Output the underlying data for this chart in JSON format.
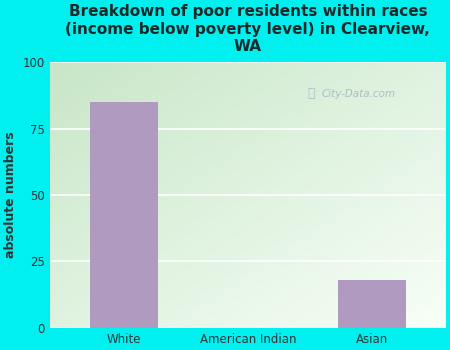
{
  "categories": [
    "White",
    "American Indian",
    "Asian"
  ],
  "values": [
    85,
    0,
    18
  ],
  "bar_color": "#b09abf",
  "title": "Breakdown of poor residents within races\n(income below poverty level) in Clearview,\nWA",
  "ylabel": "absolute numbers",
  "ylim": [
    0,
    100
  ],
  "yticks": [
    0,
    25,
    50,
    75,
    100
  ],
  "outer_bg_color": "#00efef",
  "plot_bg_color_topleft": "#c8e6c0",
  "plot_bg_color_bottomright": "#f8fff8",
  "title_color": "#1a2a2a",
  "axis_label_color": "#333333",
  "watermark_text": "City-Data.com",
  "watermark_color": "#a0b8c0",
  "grid_color": "#ffffff",
  "title_fontsize": 11,
  "ylabel_fontsize": 9,
  "tick_fontsize": 8.5
}
